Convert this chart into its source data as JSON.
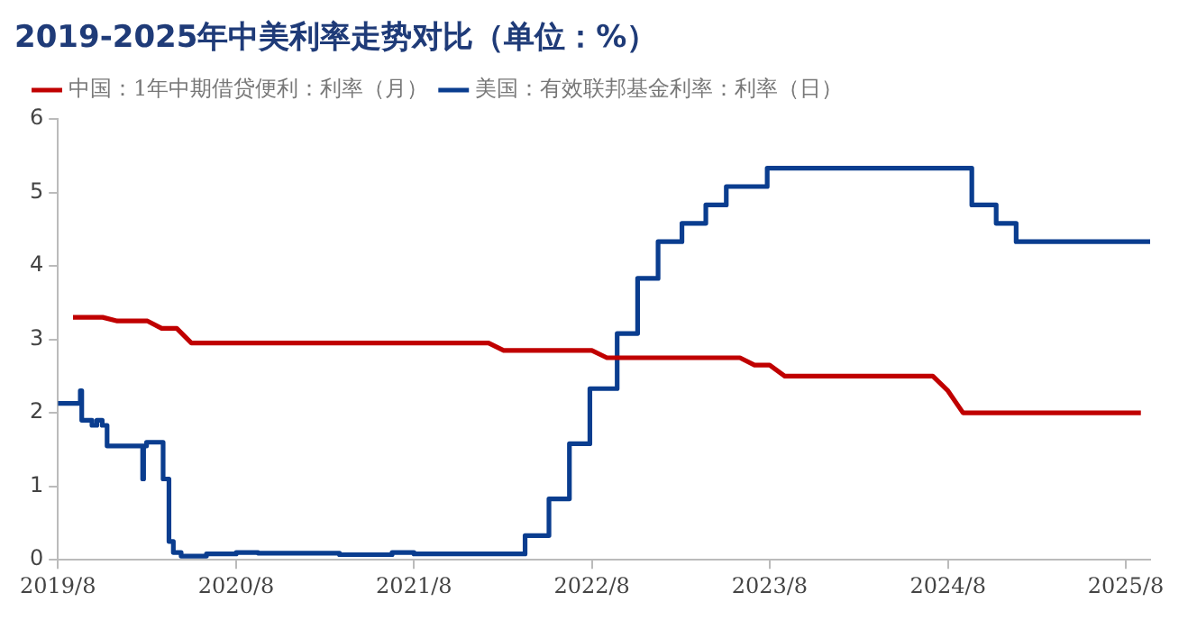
{
  "chart_data": {
    "type": "line",
    "title": "2019-2025年中美利率走势对比（单位：%）",
    "xlim": [
      "2019-08",
      "2025-09-20"
    ],
    "xticks": [
      {
        "value": "2019-08",
        "label": "2019/8"
      },
      {
        "value": "2020-08",
        "label": "2020/8"
      },
      {
        "value": "2021-08",
        "label": "2021/8"
      },
      {
        "value": "2022-08",
        "label": "2022/8"
      },
      {
        "value": "2023-08",
        "label": "2023/8"
      },
      {
        "value": "2024-08",
        "label": "2024/8"
      },
      {
        "value": "2025-08",
        "label": "2025/8"
      }
    ],
    "ylim": [
      0,
      6
    ],
    "yticks": [
      0,
      1,
      2,
      3,
      4,
      5,
      6
    ],
    "grid": false,
    "legend": "top",
    "marker": "none",
    "series": [
      {
        "name": "中国：1年中期借贷便利：利率（月）",
        "type": "line",
        "color": "#c00000",
        "x": [
          "2019-09",
          "2019-11",
          "2019-12",
          "2020-02",
          "2020-03",
          "2020-04",
          "2020-05",
          "2022-01",
          "2022-02",
          "2022-08",
          "2022-09",
          "2023-06",
          "2023-07",
          "2023-08",
          "2023-09",
          "2024-07",
          "2024-08",
          "2024-09",
          "2025-09"
        ],
        "values": [
          3.3,
          3.3,
          3.25,
          3.25,
          3.15,
          3.15,
          2.95,
          2.95,
          2.85,
          2.85,
          2.75,
          2.75,
          2.65,
          2.65,
          2.5,
          2.5,
          2.3,
          2.0,
          2.0
        ]
      },
      {
        "name": "美国：有效联邦基金利率：利率（日）",
        "type": "step",
        "color": "#0a3d8f",
        "x": [
          "2019-08-01",
          "2019-09-16",
          "2019-09-19",
          "2019-10-10",
          "2019-10-20",
          "2019-10-31",
          "2019-11-10",
          "2020-01-22",
          "2020-01-24",
          "2020-01-30",
          "2020-03-04",
          "2020-03-16",
          "2020-03-25",
          "2020-04-10",
          "2020-06-01",
          "2020-08-01",
          "2020-09-15",
          "2021-03-01",
          "2021-06-17",
          "2021-08-01",
          "2022-03-17",
          "2022-05-05",
          "2022-06-16",
          "2022-07-28",
          "2022-09-22",
          "2022-11-03",
          "2022-12-15",
          "2023-02-02",
          "2023-03-23",
          "2023-05-04",
          "2023-07-27",
          "2024-09-19",
          "2024-11-08",
          "2024-12-19",
          "2025-09-20"
        ],
        "values": [
          2.13,
          2.3,
          1.9,
          1.83,
          1.9,
          1.83,
          1.55,
          1.1,
          1.55,
          1.6,
          1.1,
          0.25,
          0.1,
          0.05,
          0.08,
          0.1,
          0.09,
          0.07,
          0.1,
          0.08,
          0.33,
          0.83,
          1.58,
          2.33,
          3.08,
          3.83,
          4.33,
          4.58,
          4.83,
          5.08,
          5.33,
          4.83,
          4.58,
          4.33,
          4.33
        ]
      }
    ]
  }
}
